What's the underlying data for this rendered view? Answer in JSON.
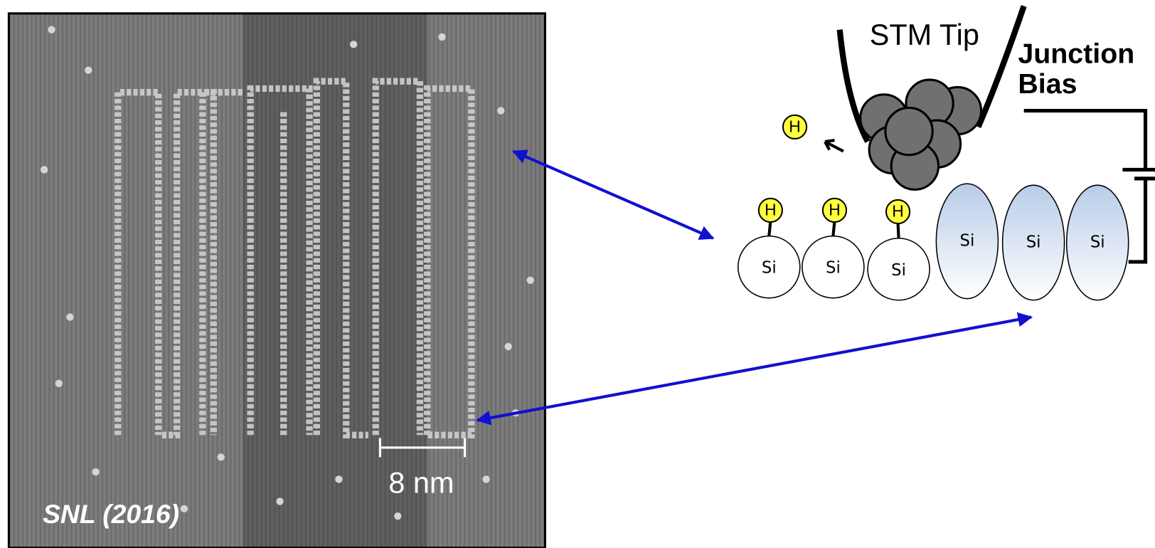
{
  "image": {
    "scale_bar": "8 nm",
    "credit": "SNL (2016)"
  },
  "diagram": {
    "tip_label": "STM Tip",
    "bias_label": [
      "Junction",
      "Bias"
    ],
    "hydrogen": [
      "H",
      "H",
      "H",
      "H"
    ],
    "silicon": [
      "Si",
      "Si",
      "Si",
      "Si",
      "Si",
      "Si"
    ]
  }
}
